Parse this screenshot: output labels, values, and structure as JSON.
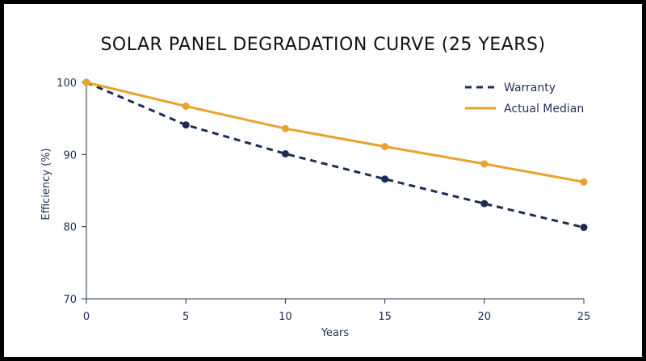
{
  "chart_data": {
    "type": "line",
    "title": "SOLAR PANEL DEGRADATION CURVE (25 YEARS)",
    "xlabel": "Years",
    "ylabel": "Efficiency (%)",
    "x": [
      0,
      5,
      10,
      15,
      20,
      25
    ],
    "xlim": [
      0,
      25
    ],
    "ylim": [
      70,
      100
    ],
    "xticks": [
      "0",
      "5",
      "10",
      "15",
      "20",
      "25"
    ],
    "yticks": [
      "70",
      "80",
      "90",
      "100"
    ],
    "grid": false,
    "legend_position": "top-right",
    "series": [
      {
        "name": "Warranty",
        "style": "dashed",
        "color": "#1d2d58",
        "values": [
          100,
          94.1,
          90.1,
          86.6,
          83.2,
          79.9
        ]
      },
      {
        "name": "Actual Median",
        "style": "solid",
        "color": "#e8a22d",
        "values": [
          100,
          96.7,
          93.6,
          91.1,
          88.7,
          86.2
        ]
      }
    ]
  }
}
